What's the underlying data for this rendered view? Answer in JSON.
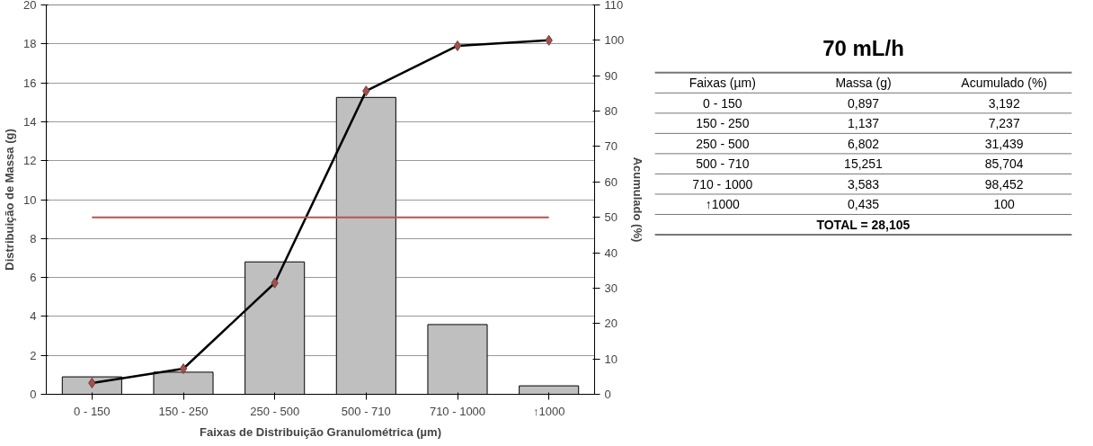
{
  "chart_data": [
    {
      "type": "bar",
      "xlabel": "Faixas de Distribuição Granulométrica (µm)",
      "ylabel": "Distribuição de Massa (g)",
      "y2label": "Acumulado (%)",
      "categories": [
        "0 - 150",
        "150 - 250",
        "250 - 500",
        "500 - 710",
        "710 - 1000",
        "↑1000"
      ],
      "series": [
        {
          "color": "#bfbfbf",
          "values": [
            0.897,
            1.137,
            6.802,
            15.251,
            3.583,
            0.435
          ]
        },
        {
          "type": "line",
          "axis": "y2",
          "color": "#000000",
          "values": [
            3.192,
            7.237,
            31.439,
            85.704,
            98.452,
            100
          ]
        }
      ],
      "ylim": [
        0,
        20
      ],
      "yticks": [
        0,
        2,
        4,
        6,
        8,
        10,
        12,
        14,
        16,
        18,
        20
      ],
      "y2lim": [
        0,
        110
      ],
      "y2ticks": [
        0,
        10,
        20,
        30,
        40,
        50,
        60,
        70,
        80,
        90,
        100,
        110
      ],
      "ref_lines": [
        {
          "axis": "y2",
          "value": 50,
          "color": "#c0504d"
        }
      ],
      "grid": "y",
      "marker": "diamond",
      "line_style": "solid"
    },
    {
      "type": "other",
      "title": "70 mL/h",
      "annotations": [
        "Faixas (µm)",
        "Massa (g)",
        "Acumulado (%)",
        "0 - 150",
        "0,897",
        "3,192",
        "150 - 250",
        "1,137",
        "7,237",
        "250 - 500",
        "6,802",
        "31,439",
        "500 - 710",
        "15,251",
        "85,704",
        "710 - 1000",
        "3,583",
        "98,452",
        "↑1000",
        "0,435",
        "100",
        "TOTAL = 28,105"
      ]
    }
  ]
}
